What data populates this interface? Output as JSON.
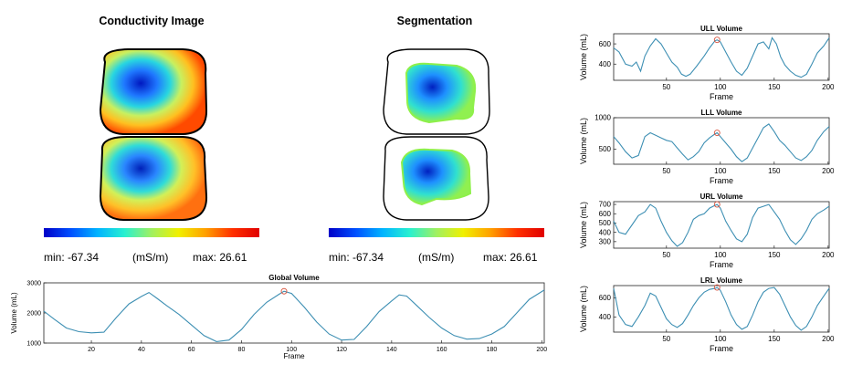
{
  "panels": {
    "conductivity": {
      "title": "Conductivity Image",
      "min_label": "min: -67.34",
      "unit_label": "(mS/m)",
      "max_label": "max:  26.61"
    },
    "segmentation": {
      "title": "Segmentation",
      "min_label": "min: -67.34",
      "unit_label": "(mS/m)",
      "max_label": "max: 26.61"
    }
  },
  "colorbar": {
    "colors": [
      "#0000c8",
      "#0050ff",
      "#00b4ff",
      "#28f0d0",
      "#a0f060",
      "#f0f000",
      "#ffa000",
      "#ff3000",
      "#e00000"
    ]
  },
  "colors": {
    "line": "#3d8fb3",
    "marker": "#d8553f"
  },
  "chart_data": [
    {
      "id": "global",
      "type": "line",
      "title": "Global Volume",
      "xlabel": "Frame",
      "ylabel": "Volume (mL)",
      "xlim": [
        1,
        201
      ],
      "ylim": [
        1000,
        3000
      ],
      "xticks": [
        20,
        40,
        60,
        80,
        100,
        120,
        140,
        160,
        180,
        200
      ],
      "yticks": [
        1000,
        2000,
        3000
      ],
      "marker": {
        "x": 97,
        "y": 2720
      },
      "x": [
        1,
        5,
        10,
        15,
        20,
        25,
        30,
        35,
        40,
        43,
        46,
        50,
        55,
        60,
        65,
        70,
        75,
        80,
        85,
        90,
        95,
        97,
        100,
        105,
        110,
        115,
        120,
        125,
        130,
        135,
        140,
        143,
        146,
        150,
        155,
        160,
        165,
        170,
        175,
        180,
        185,
        190,
        195,
        201
      ],
      "y": [
        2060,
        1800,
        1500,
        1380,
        1340,
        1360,
        1850,
        2300,
        2550,
        2680,
        2500,
        2250,
        1950,
        1600,
        1250,
        1050,
        1100,
        1450,
        1950,
        2350,
        2620,
        2720,
        2650,
        2200,
        1700,
        1300,
        1100,
        1120,
        1550,
        2050,
        2400,
        2600,
        2560,
        2250,
        1850,
        1500,
        1250,
        1130,
        1150,
        1300,
        1550,
        2000,
        2450,
        2760
      ]
    },
    {
      "id": "ull",
      "type": "line",
      "title": "ULL Volume",
      "xlabel": "Frame",
      "ylabel": "Volume (mL)",
      "xlim": [
        1,
        201
      ],
      "ylim": [
        240,
        700
      ],
      "xticks": [
        50,
        100,
        150,
        200
      ],
      "yticks": [
        400,
        600
      ],
      "marker": {
        "x": 97,
        "y": 640
      },
      "x": [
        1,
        6,
        12,
        18,
        22,
        26,
        30,
        35,
        40,
        45,
        50,
        55,
        60,
        64,
        68,
        72,
        78,
        85,
        90,
        95,
        97,
        100,
        105,
        110,
        115,
        120,
        125,
        130,
        135,
        140,
        145,
        148,
        152,
        156,
        160,
        165,
        170,
        175,
        180,
        185,
        190,
        196,
        201
      ],
      "y": [
        560,
        520,
        400,
        380,
        420,
        330,
        480,
        580,
        650,
        600,
        510,
        420,
        370,
        300,
        280,
        300,
        380,
        480,
        560,
        630,
        640,
        620,
        520,
        420,
        330,
        290,
        360,
        480,
        600,
        620,
        550,
        660,
        600,
        470,
        390,
        330,
        290,
        270,
        300,
        400,
        510,
        580,
        660
      ]
    },
    {
      "id": "lll",
      "type": "line",
      "title": "LLL Volume",
      "xlabel": "Frame",
      "ylabel": "Volume (mL)",
      "xlim": [
        1,
        201
      ],
      "ylim": [
        260,
        1000
      ],
      "xticks": [
        50,
        100,
        150,
        200
      ],
      "yticks": [
        500,
        1000
      ],
      "marker": {
        "x": 97,
        "y": 760
      },
      "x": [
        1,
        6,
        12,
        18,
        24,
        30,
        35,
        40,
        45,
        50,
        55,
        60,
        65,
        70,
        75,
        80,
        85,
        90,
        95,
        97,
        100,
        105,
        110,
        115,
        120,
        125,
        130,
        135,
        140,
        145,
        150,
        155,
        160,
        165,
        170,
        175,
        180,
        185,
        190,
        196,
        201
      ],
      "y": [
        700,
        600,
        460,
        360,
        400,
        700,
        760,
        720,
        680,
        640,
        620,
        520,
        420,
        330,
        380,
        460,
        600,
        680,
        740,
        760,
        700,
        600,
        500,
        380,
        300,
        360,
        520,
        680,
        840,
        900,
        780,
        640,
        560,
        460,
        360,
        320,
        380,
        480,
        640,
        780,
        860
      ]
    },
    {
      "id": "url",
      "type": "line",
      "title": "URL Volume",
      "xlabel": "Frame",
      "ylabel": "Volume (mL)",
      "xlim": [
        1,
        201
      ],
      "ylim": [
        230,
        730
      ],
      "xticks": [
        50,
        100,
        150,
        200
      ],
      "yticks": [
        300,
        400,
        500,
        600,
        700
      ],
      "marker": {
        "x": 97,
        "y": 700
      },
      "x": [
        1,
        6,
        12,
        18,
        24,
        30,
        35,
        40,
        45,
        50,
        55,
        60,
        65,
        70,
        75,
        80,
        85,
        90,
        95,
        97,
        100,
        105,
        110,
        115,
        120,
        125,
        130,
        135,
        140,
        145,
        150,
        155,
        160,
        165,
        170,
        175,
        180,
        185,
        190,
        196,
        201
      ],
      "y": [
        520,
        400,
        380,
        480,
        580,
        620,
        700,
        660,
        520,
        400,
        310,
        250,
        290,
        400,
        540,
        580,
        600,
        660,
        690,
        700,
        660,
        520,
        420,
        330,
        300,
        380,
        560,
        660,
        680,
        700,
        620,
        540,
        420,
        320,
        270,
        330,
        420,
        540,
        600,
        640,
        680
      ]
    },
    {
      "id": "lrl",
      "type": "line",
      "title": "LRL Volume",
      "xlabel": "Frame",
      "ylabel": "Volume (mL)",
      "xlim": [
        1,
        201
      ],
      "ylim": [
        240,
        730
      ],
      "xticks": [
        50,
        100,
        150,
        200
      ],
      "yticks": [
        400,
        600
      ],
      "marker": {
        "x": 97,
        "y": 710
      },
      "x": [
        1,
        6,
        12,
        18,
        24,
        30,
        35,
        40,
        45,
        50,
        55,
        60,
        65,
        70,
        75,
        80,
        85,
        90,
        95,
        97,
        100,
        105,
        110,
        115,
        120,
        125,
        130,
        135,
        140,
        145,
        150,
        155,
        160,
        165,
        170,
        175,
        180,
        185,
        190,
        196,
        201
      ],
      "y": [
        700,
        420,
        320,
        300,
        400,
        520,
        650,
        620,
        500,
        380,
        320,
        290,
        330,
        420,
        520,
        600,
        660,
        690,
        700,
        710,
        680,
        560,
        420,
        320,
        270,
        300,
        420,
        560,
        660,
        700,
        710,
        640,
        520,
        400,
        310,
        260,
        300,
        400,
        520,
        620,
        700
      ]
    }
  ]
}
